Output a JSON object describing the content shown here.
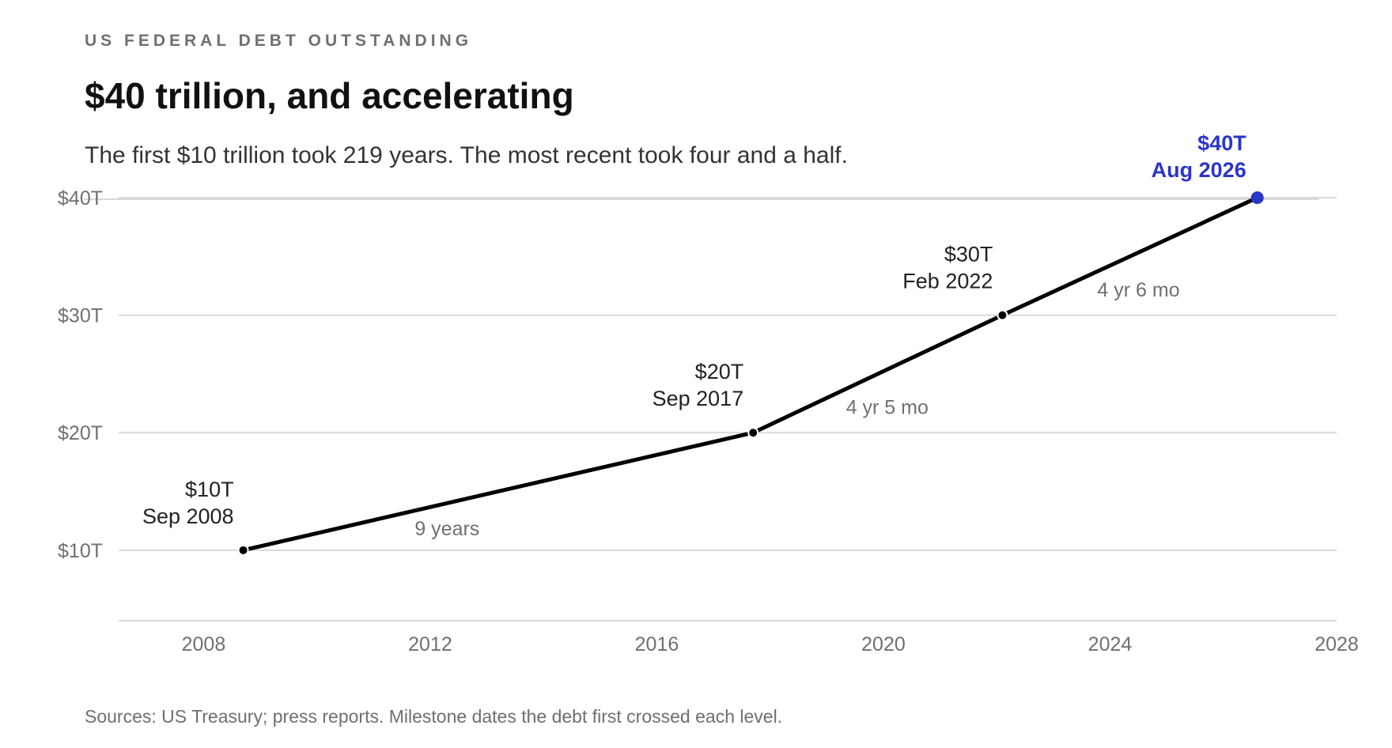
{
  "header": {
    "eyebrow": "US FEDERAL DEBT OUTSTANDING",
    "title": "$40 trillion, and accelerating",
    "subtitle": "The first $10 trillion took 219 years. The most recent took four and a half."
  },
  "footer": {
    "source": "Sources: US Treasury; press reports. Milestone dates the debt first crossed each level."
  },
  "colors": {
    "line": "#000000",
    "highlight": "#2b35c8",
    "grid": "#d9d9d9",
    "axis_text": "#707070",
    "label_text": "#222222",
    "interval_text": "#707070"
  },
  "chart_data": {
    "type": "line",
    "title": "$40 trillion, and accelerating",
    "subtitle": "The first $10 trillion took 219 years. The most recent took four and a half.",
    "xlabel": "",
    "ylabel": "",
    "xlim": [
      2006.5,
      2028
    ],
    "ylim": [
      4,
      40
    ],
    "grid": true,
    "x_ticks": [
      2008,
      2012,
      2016,
      2020,
      2024,
      2028
    ],
    "y_ticks": [
      10,
      20,
      30,
      40
    ],
    "y_tick_labels": [
      "$10T",
      "$20T",
      "$30T",
      "$40T"
    ],
    "series": [
      {
        "points": [
          {
            "x": 2008.7,
            "y": 10,
            "value_label": "$10T",
            "date_label": "Sep 2008"
          },
          {
            "x": 2017.7,
            "y": 20,
            "value_label": "$20T",
            "date_label": "Sep 2017"
          },
          {
            "x": 2022.1,
            "y": 30,
            "value_label": "$30T",
            "date_label": "Feb 2022"
          },
          {
            "x": 2026.6,
            "y": 40,
            "value_label": "$40T",
            "date_label": "Aug 2026",
            "highlight": true
          }
        ]
      }
    ],
    "intervals": [
      "9 years",
      "4 yr 5 mo",
      "4 yr 6 mo"
    ]
  }
}
